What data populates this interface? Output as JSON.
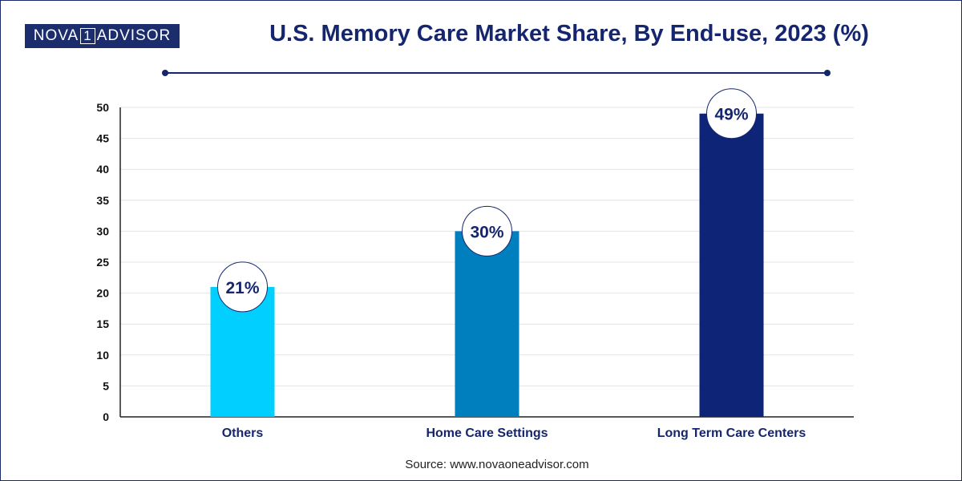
{
  "logo": {
    "left": "NOVA",
    "mid": "1",
    "right": "ADVISOR"
  },
  "source": "Source: www.novaoneadvisor.com",
  "colors": {
    "title": "#15266e",
    "bars": [
      "#00cfff",
      "#007fbf",
      "#0e2477"
    ]
  },
  "chart_data": {
    "type": "bar",
    "title": "U.S. Memory Care Market Share, By End-use, 2023 (%)",
    "categories": [
      "Others",
      "Home Care Settings",
      "Long Term Care Centers"
    ],
    "values": [
      21,
      30,
      49
    ],
    "data_labels": [
      "21%",
      "30%",
      "49%"
    ],
    "xlabel": "",
    "ylabel": "",
    "ylim": [
      0,
      50
    ],
    "yticks": [
      0,
      5,
      10,
      15,
      20,
      25,
      30,
      35,
      40,
      45,
      50
    ],
    "grid": true,
    "legend": "none"
  }
}
